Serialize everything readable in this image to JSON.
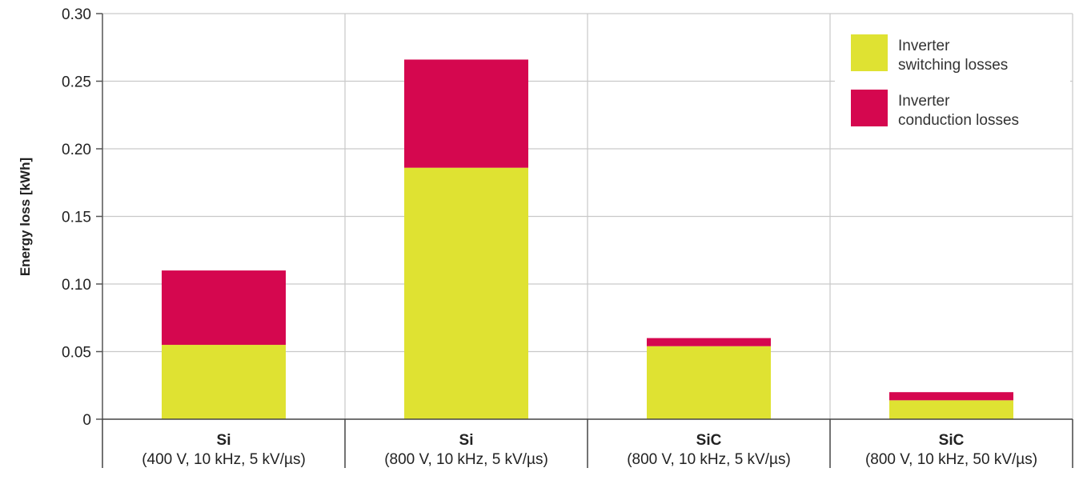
{
  "chart_data": {
    "type": "bar",
    "stacked": true,
    "title": "",
    "xlabel": "",
    "ylabel": "Energy loss [kWh]",
    "ylim": [
      0,
      0.3
    ],
    "yticks": [
      "0",
      "0.05",
      "0.10",
      "0.15",
      "0.20",
      "0.25",
      "0.30"
    ],
    "grid": true,
    "legend_position": "top-right",
    "categories": [
      {
        "main": "Si",
        "sub": "(400 V, 10 kHz, 5 kV/µs)"
      },
      {
        "main": "Si",
        "sub": "(800 V, 10 kHz, 5 kV/µs)"
      },
      {
        "main": "SiC",
        "sub": "(800 V, 10 kHz, 5 kV/µs)"
      },
      {
        "main": "SiC",
        "sub": "(800 V, 10 kHz, 50 kV/µs)"
      }
    ],
    "series": [
      {
        "name": "Inverter switching losses",
        "legend_lines": [
          "Inverter",
          "switching losses"
        ],
        "color": "#dfe232",
        "values": [
          0.055,
          0.186,
          0.054,
          0.014
        ]
      },
      {
        "name": "Inverter conduction losses",
        "legend_lines": [
          "Inverter",
          "conduction losses"
        ],
        "color": "#d5074f",
        "values": [
          0.055,
          0.08,
          0.006,
          0.006
        ]
      }
    ]
  }
}
